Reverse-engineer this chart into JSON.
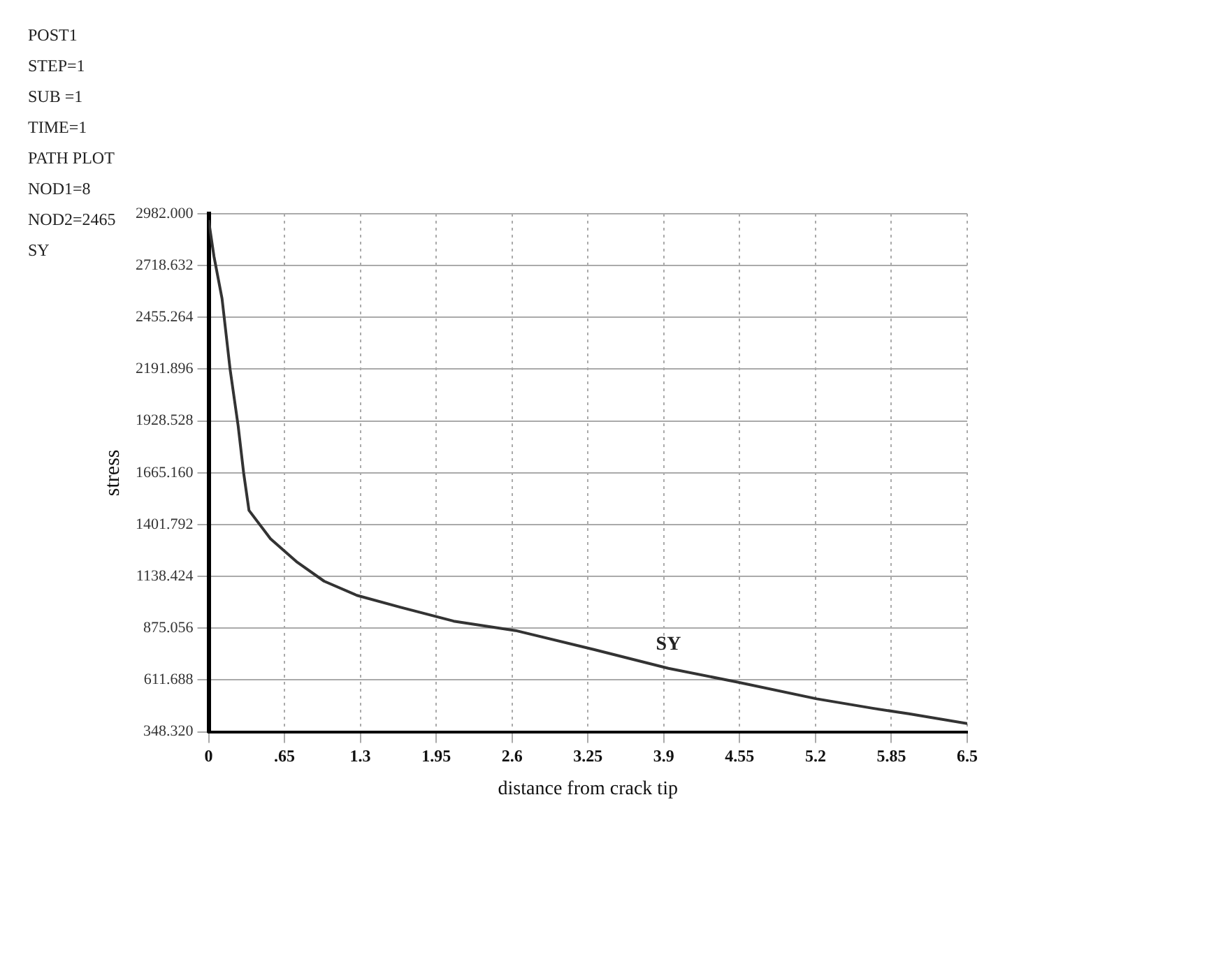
{
  "chart_data": {
    "type": "line",
    "xlabel": "distance from crack tip",
    "ylabel": "stress",
    "annotations": [
      "POST1",
      "STEP=1",
      "SUB =1",
      "TIME=1",
      "PATH PLOT",
      "NOD1=8",
      "NOD2=2465",
      "SY"
    ],
    "series": [
      {
        "name": "SY",
        "color": "#333333",
        "x": [
          0,
          0.046,
          0.115,
          0.184,
          0.253,
          0.3,
          0.346,
          0.53,
          0.76,
          0.99,
          1.27,
          1.64,
          2.1,
          2.63,
          3.3,
          3.94,
          4.54,
          5.21,
          5.69,
          6.0,
          6.5
        ],
        "values": [
          2950,
          2765,
          2551,
          2192,
          1904,
          1665,
          1474,
          1330,
          1210,
          1114,
          1042,
          982,
          911,
          863,
          767,
          671,
          600,
          516,
          468,
          440,
          390
        ]
      }
    ],
    "xlim": [
      0,
      6.5
    ],
    "xticks": [
      0,
      {
        "value": 0.65,
        "label": ".65"
      },
      1.3,
      1.95,
      2.6,
      3.25,
      3.9,
      4.55,
      5.2,
      5.85,
      6.5
    ],
    "ylim": [
      348.32,
      2982
    ],
    "yticks": [
      {
        "value": 348.32,
        "label": "348.320"
      },
      {
        "value": 611.688,
        "label": "611.688"
      },
      {
        "value": 875.056,
        "label": "875.056"
      },
      {
        "value": 1138.424,
        "label": "1138.424"
      },
      {
        "value": 1401.792,
        "label": "1401.792"
      },
      {
        "value": 1665.16,
        "label": "1665.160"
      },
      {
        "value": 1928.528,
        "label": "1928.528"
      },
      {
        "value": 2191.896,
        "label": "2191.896"
      },
      {
        "value": 2455.264,
        "label": "2455.264"
      },
      {
        "value": 2718.632,
        "label": "2718.632"
      },
      {
        "value": 2982,
        "label": "2982.000"
      }
    ],
    "grid": true,
    "legend": false,
    "marker": "none",
    "line_style": "solid"
  }
}
